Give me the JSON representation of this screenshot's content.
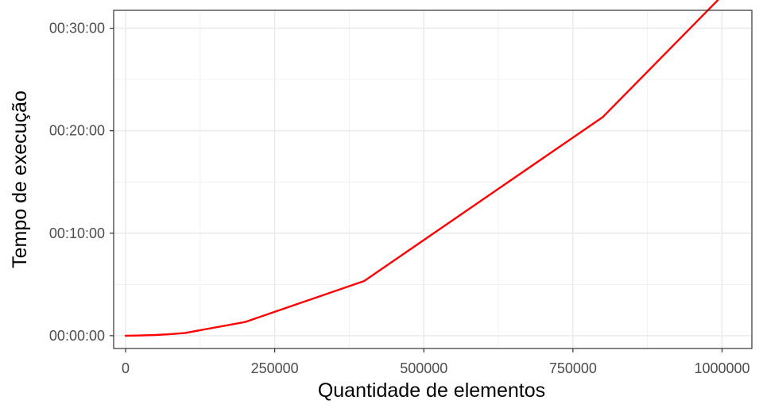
{
  "chart_data": {
    "type": "line",
    "xlabel": "Quantidade de elementos",
    "ylabel": "Tempo de execução",
    "xlim": [
      -20000,
      1050000
    ],
    "ylim_seconds": [
      -75,
      1905
    ],
    "x_ticks": [
      0,
      250000,
      500000,
      750000,
      1000000
    ],
    "x_tick_labels": [
      "0",
      "250000",
      "500000",
      "750000",
      "1000000"
    ],
    "y_ticks_seconds": [
      0,
      600,
      1200,
      1800
    ],
    "y_tick_labels": [
      "00:00:00",
      "00:10:00",
      "00:20:00",
      "00:30:00"
    ],
    "grid": true,
    "series": [
      {
        "color": "#ff0000",
        "x": [
          0,
          25000,
          50000,
          75000,
          100000,
          200000,
          400000,
          800000,
          1000000
        ],
        "y_seconds": [
          0,
          1,
          4,
          9,
          16,
          80,
          320,
          1280,
          1990
        ]
      }
    ]
  }
}
